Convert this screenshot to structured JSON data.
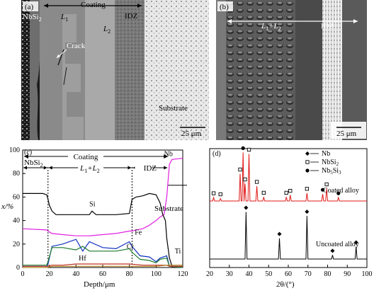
{
  "panel_a": {
    "tag": "(a)",
    "coating_label": "Coating",
    "nbsi2_label": "NbSi",
    "nbsi2_sub": "2",
    "l1_label": "L",
    "l1_sub": "1",
    "l2_label": "L",
    "l2_sub": "2",
    "idz_label": "IDZ",
    "crack_label": "Crack",
    "substrate_label": "Substrate",
    "scale_label": "25 μm",
    "colors": {
      "background": "#9a9a9a",
      "substrate": "#e9e9e9",
      "dark": "#1b1b1b"
    }
  },
  "panel_b": {
    "tag": "(b)",
    "l1l2_label": "L",
    "l1l2_mid": "+L",
    "l1l2_sub1": "1",
    "l1l2_sub2": "2",
    "idz_label": "IDZ",
    "scale_label": "25 μm"
  },
  "chart_data": [
    {
      "type": "line",
      "tag": "(c)",
      "xlabel": "Depth/μm",
      "ylabel": "x/%",
      "xlim": [
        0,
        120
      ],
      "ylim": [
        0,
        100
      ],
      "xticks": [
        0,
        20,
        40,
        60,
        80,
        100,
        120
      ],
      "yticks": [
        0,
        20,
        40,
        60,
        80,
        100
      ],
      "zone_labels": {
        "coating": "Coating",
        "nbsi2": "NbSi",
        "nbsi2_sub": "2",
        "l1l2": "L",
        "l1l2_mid": "+L",
        "l1l2_sub1": "1",
        "l1l2_sub2": "2",
        "idz": "IDZ",
        "substrate": "Substrate"
      },
      "boundaries": [
        19,
        82,
        109
      ],
      "series": [
        {
          "name": "Nb",
          "color": "#e020e0",
          "x": [
            0,
            18,
            19,
            22,
            30,
            40,
            50,
            60,
            70,
            80,
            82,
            85,
            90,
            95,
            100,
            103,
            106,
            108,
            110,
            112,
            120
          ],
          "y": [
            33,
            32,
            31,
            29,
            28,
            27,
            27,
            28,
            29,
            31,
            31,
            32,
            33,
            36,
            40,
            43,
            45,
            60,
            88,
            92,
            93
          ]
        },
        {
          "name": "Si",
          "color": "#000000",
          "x": [
            0,
            15,
            18,
            19,
            20,
            22,
            25,
            30,
            40,
            50,
            52,
            55,
            60,
            70,
            80,
            82,
            85,
            90,
            95,
            100,
            103,
            105,
            107,
            108,
            110,
            112,
            120
          ],
          "y": [
            63,
            63,
            62,
            58,
            53,
            48,
            45,
            45,
            45,
            45,
            48,
            45,
            45,
            45,
            46,
            58,
            60,
            61,
            63,
            62,
            55,
            45,
            40,
            25,
            8,
            1,
            1
          ]
        },
        {
          "name": "Fe",
          "color": "#1030c0",
          "x": [
            0,
            18,
            19,
            22,
            30,
            40,
            45,
            50,
            60,
            70,
            80,
            82,
            88,
            95,
            100,
            103,
            108,
            110,
            120
          ],
          "y": [
            1,
            1,
            3,
            18,
            20,
            24,
            14,
            22,
            17,
            16,
            22,
            18,
            10,
            9,
            5,
            8,
            10,
            1,
            0
          ]
        },
        {
          "name": "Cr",
          "color": "#1a7a2a",
          "x": [
            0,
            18,
            19,
            22,
            30,
            40,
            45,
            50,
            60,
            70,
            80,
            82,
            88,
            95,
            100,
            103,
            108,
            110,
            120
          ],
          "y": [
            2,
            2,
            5,
            17,
            17,
            15,
            18,
            14,
            14,
            14,
            16,
            13,
            7,
            6,
            4,
            7,
            8,
            1,
            0
          ]
        },
        {
          "name": "Hf",
          "color": "#c03020",
          "x": [
            0,
            18,
            22,
            30,
            40,
            50,
            60,
            70,
            80,
            90,
            100,
            108,
            110,
            120
          ],
          "y": [
            1,
            1,
            2,
            2,
            3,
            3,
            3,
            3,
            3,
            2,
            2,
            2,
            1,
            1
          ]
        },
        {
          "name": "Ti",
          "color": "#b08020",
          "x": [
            0,
            18,
            22,
            30,
            40,
            50,
            60,
            70,
            80,
            90,
            100,
            108,
            110,
            120
          ],
          "y": [
            0,
            0,
            1,
            1,
            1,
            1,
            1,
            1,
            1,
            1,
            1,
            2,
            2,
            2
          ]
        }
      ],
      "series_labels": [
        "Si",
        "Nb",
        "Fe",
        "Cr",
        "Hf",
        "Ti"
      ]
    },
    {
      "type": "line",
      "tag": "(d)",
      "xlabel": "2θ/(°)",
      "xlim": [
        20,
        100
      ],
      "xticks": [
        20,
        30,
        40,
        50,
        60,
        70,
        80,
        90,
        100
      ],
      "legend": [
        {
          "marker": "diamond",
          "label": "Nb",
          "sub": ""
        },
        {
          "marker": "square",
          "label": "NbSi",
          "sub": "2"
        },
        {
          "marker": "circle",
          "label": "Nb",
          "sub": "5",
          "label2": "Si",
          "sub2": "3"
        }
      ],
      "series": [
        {
          "name": "Coated alloy",
          "color": "#e01818",
          "peaks": [
            {
              "x": 22,
              "h": 0.07,
              "marker": "square"
            },
            {
              "x": 25.5,
              "h": 0.05,
              "marker": "square"
            },
            {
              "x": 35.5,
              "h": 0.55,
              "marker": "square"
            },
            {
              "x": 37,
              "h": 0.98,
              "marker": "circle"
            },
            {
              "x": 38,
              "h": 0.35,
              "marker": "square"
            },
            {
              "x": 40,
              "h": 0.95,
              "marker": "square"
            },
            {
              "x": 44,
              "h": 0.3,
              "marker": "square"
            },
            {
              "x": 47.5,
              "h": 0.08,
              "marker": "square"
            },
            {
              "x": 59,
              "h": 0.08,
              "marker": "square"
            },
            {
              "x": 61,
              "h": 0.12,
              "marker": "square"
            },
            {
              "x": 69.5,
              "h": 0.16,
              "marker": "square"
            },
            {
              "x": 77.5,
              "h": 0.14,
              "marker": "circle"
            },
            {
              "x": 79.5,
              "h": 0.25,
              "marker": "square"
            },
            {
              "x": 85.5,
              "h": 0.07,
              "marker": "circle"
            }
          ]
        },
        {
          "name": "Uncoated alloy",
          "color": "#000000",
          "peaks": [
            {
              "x": 38.5,
              "h": 0.95,
              "marker": "diamond"
            },
            {
              "x": 55.5,
              "h": 0.42,
              "marker": "diamond"
            },
            {
              "x": 69.5,
              "h": 0.87,
              "marker": "diamond"
            },
            {
              "x": 82.5,
              "h": 0.08,
              "marker": "diamond"
            },
            {
              "x": 94.5,
              "h": 0.25,
              "marker": "diamond"
            }
          ]
        }
      ]
    }
  ]
}
